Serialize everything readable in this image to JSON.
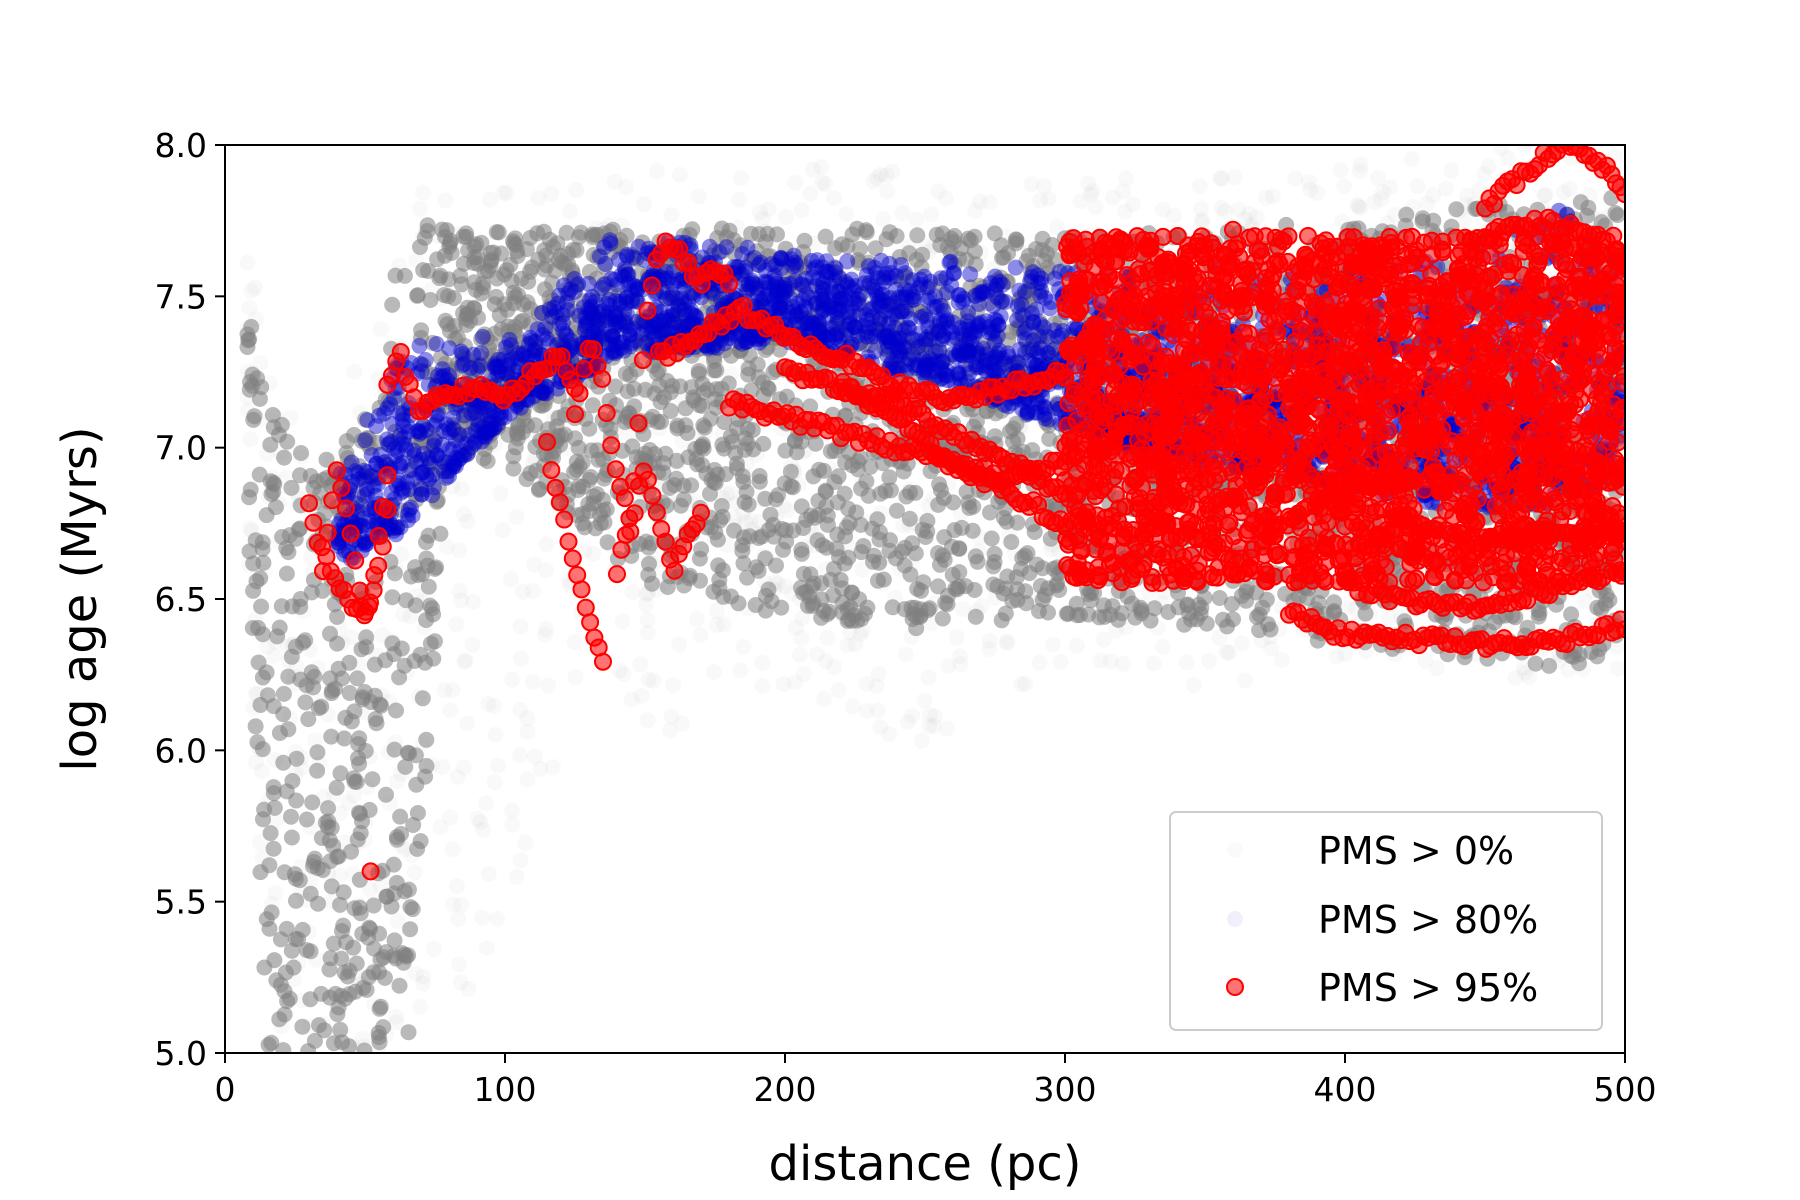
{
  "chart_data": {
    "type": "scatter",
    "title": "",
    "xlabel": "distance (pc)",
    "ylabel": "log age (Myrs)",
    "xlim": [
      0,
      500
    ],
    "ylim": [
      5.0,
      8.0
    ],
    "xticks": [
      0,
      100,
      200,
      300,
      400,
      500
    ],
    "xtick_labels": [
      "0",
      "100",
      "200",
      "300",
      "400",
      "500"
    ],
    "yticks": [
      5.0,
      5.5,
      6.0,
      6.5,
      7.0,
      7.5,
      8.0
    ],
    "ytick_labels": [
      "5.0",
      "5.5",
      "6.0",
      "6.5",
      "7.0",
      "7.5",
      "8.0"
    ],
    "grid": false,
    "legend_position": "lower-right",
    "series": [
      {
        "name": "PMS > 0%",
        "color": "#808080",
        "marker": "circle",
        "band_x": [
          8,
          15,
          25,
          35,
          50,
          65,
          80,
          100,
          130,
          160,
          200,
          250,
          300,
          350,
          400,
          450,
          500
        ],
        "band_upper": [
          7.5,
          7.2,
          7.0,
          6.95,
          7.1,
          7.75,
          7.72,
          7.72,
          7.72,
          7.72,
          7.75,
          7.72,
          7.7,
          7.72,
          7.75,
          7.8,
          7.85
        ],
        "band_lower": [
          6.7,
          5.0,
          5.0,
          5.0,
          5.0,
          5.0,
          6.95,
          6.95,
          6.7,
          6.5,
          6.45,
          6.4,
          6.45,
          6.4,
          6.35,
          6.3,
          6.25
        ],
        "faint_band_lower": [
          6.6,
          5.0,
          5.0,
          5.0,
          5.0,
          5.0,
          5.0,
          5.4,
          6.3,
          6.0,
          6.2,
          6.0,
          6.3,
          6.2,
          6.3,
          6.25,
          6.2
        ]
      },
      {
        "name": "PMS > 80%",
        "color": "#0000cc",
        "marker": "circle",
        "band_x": [
          40,
          60,
          100,
          140,
          200,
          260,
          320,
          380,
          440,
          470,
          500
        ],
        "band_upper": [
          6.9,
          7.35,
          7.4,
          7.72,
          7.65,
          7.62,
          7.6,
          7.62,
          7.7,
          7.85,
          7.75
        ],
        "band_lower": [
          6.6,
          6.7,
          7.1,
          7.3,
          7.35,
          7.2,
          7.0,
          6.9,
          6.8,
          6.8,
          6.9
        ]
      },
      {
        "name": "PMS > 95%",
        "color": "#ff0000",
        "marker": "circle",
        "cloud_x": [
          300,
          500
        ],
        "cloud_upper": 7.7,
        "cloud_lower": 6.4,
        "tracks": [
          {
            "x": [
              30,
              33,
              38,
              43,
              48,
              52,
              55,
              58
            ],
            "y": [
              6.83,
              6.7,
              6.6,
              6.5,
              6.45,
              6.5,
              6.7,
              6.9
            ]
          },
          {
            "x": [
              35,
              40,
              45,
              50,
              55,
              58
            ],
            "y": [
              6.6,
              6.95,
              6.7,
              6.45,
              6.6,
              6.8
            ]
          },
          {
            "x": [
              58,
              62,
              66,
              70,
              80,
              90,
              100,
              110,
              120,
              125
            ],
            "y": [
              7.2,
              7.33,
              7.2,
              7.12,
              7.18,
              7.2,
              7.15,
              7.25,
              7.3,
              7.2
            ]
          },
          {
            "x": [
              115,
              120,
              125,
              130,
              133,
              135
            ],
            "y": [
              7.0,
              6.8,
              6.6,
              6.45,
              6.35,
              6.28
            ]
          },
          {
            "x": [
              125,
              130,
              135,
              140,
              145,
              150,
              155,
              160,
              165,
              170,
              175,
              180
            ],
            "y": [
              7.1,
              7.35,
              7.2,
              6.9,
              6.75,
              7.4,
              7.65,
              7.68,
              7.6,
              7.55,
              7.58,
              7.55
            ]
          },
          {
            "x": [
              140,
              145,
              150,
              155,
              160,
              165,
              170
            ],
            "y": [
              6.6,
              6.75,
              6.95,
              6.75,
              6.6,
              6.7,
              6.8
            ]
          },
          {
            "x": [
              155,
              165,
              175,
              185,
              195,
              205,
              220,
              240,
              260,
              280,
              300
            ],
            "y": [
              7.3,
              7.35,
              7.4,
              7.45,
              7.4,
              7.35,
              7.3,
              7.2,
              7.15,
              7.2,
              7.25
            ]
          },
          {
            "x": [
              180,
              200,
              220,
              240,
              260,
              280,
              300
            ],
            "y": [
              7.15,
              7.1,
              7.05,
              7.0,
              6.95,
              6.9,
              6.95
            ]
          },
          {
            "x": [
              200,
              220,
              240,
              260,
              280,
              300
            ],
            "y": [
              7.25,
              7.2,
              7.15,
              7.05,
              6.95,
              6.85
            ]
          },
          {
            "x": [
              220,
              240,
              260,
              280,
              300
            ],
            "y": [
              7.2,
              7.1,
              6.95,
              6.85,
              6.75
            ]
          },
          {
            "x": [
              380,
              400,
              420,
              440,
              460,
              480,
              500
            ],
            "y": [
              6.45,
              6.38,
              6.37,
              6.36,
              6.35,
              6.37,
              6.42
            ]
          },
          {
            "x": [
              400,
              420,
              440,
              460,
              480,
              500
            ],
            "y": [
              6.55,
              6.5,
              6.47,
              6.5,
              6.55,
              6.6
            ]
          },
          {
            "x": [
              420,
              440,
              460,
              480,
              500
            ],
            "y": [
              6.75,
              6.7,
              6.7,
              6.72,
              6.7
            ]
          },
          {
            "x": [
              450,
              470,
              480,
              490,
              500
            ],
            "y": [
              7.8,
              7.95,
              8.0,
              7.95,
              7.85
            ]
          },
          {
            "x": [
              450,
              470,
              490,
              500
            ],
            "y": [
              7.7,
              7.75,
              7.7,
              7.6
            ]
          }
        ],
        "outliers": [
          {
            "x": 52,
            "y": 5.6
          },
          {
            "x": 360,
            "y": 7.72
          }
        ]
      }
    ]
  }
}
